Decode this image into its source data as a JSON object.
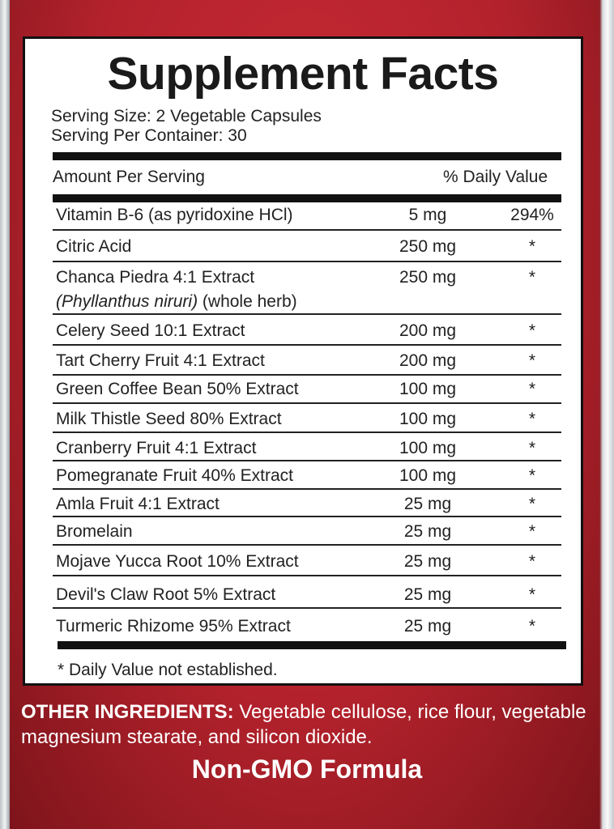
{
  "title": "Supplement Facts",
  "serving_size": "Serving Size: 2 Vegetable Capsules",
  "serving_per_container": "Serving Per Container: 30",
  "header": {
    "amount": "Amount Per Serving",
    "dv": "% Daily Value"
  },
  "rows": [
    {
      "name": "Vitamin B-6 (as pyridoxine HCl)",
      "amount": "5 mg",
      "dv": "294%"
    },
    {
      "name": "Citric Acid",
      "amount": "250 mg",
      "dv": "*"
    },
    {
      "name": "Chanca Piedra 4:1 Extract",
      "sub_italic": "(Phyllanthus niruri)",
      "sub": " (whole herb)",
      "amount": "250 mg",
      "dv": "*"
    },
    {
      "name": "Celery Seed 10:1 Extract",
      "amount": "200 mg",
      "dv": "*"
    },
    {
      "name": "Tart Cherry Fruit 4:1 Extract",
      "amount": "200 mg",
      "dv": "*"
    },
    {
      "name": "Green Coffee Bean 50% Extract",
      "amount": "100 mg",
      "dv": "*"
    },
    {
      "name": "Milk Thistle Seed 80% Extract",
      "amount": "100 mg",
      "dv": "*"
    },
    {
      "name": "Cranberry Fruit 4:1 Extract",
      "amount": "100 mg",
      "dv": "*"
    },
    {
      "name": "Pomegranate Fruit 40% Extract",
      "amount": "100 mg",
      "dv": "*"
    },
    {
      "name": "Amla Fruit 4:1 Extract",
      "amount": "25 mg",
      "dv": "*"
    },
    {
      "name": "Bromelain",
      "amount": "25 mg",
      "dv": "*"
    },
    {
      "name": "Mojave Yucca Root 10% Extract",
      "amount": "25 mg",
      "dv": "*"
    },
    {
      "name": "Devil's Claw Root 5% Extract",
      "amount": "25 mg",
      "dv": "*"
    },
    {
      "name": "Turmeric Rhizome 95% Extract",
      "amount": "25 mg",
      "dv": "*"
    }
  ],
  "footnote": "* Daily Value not established.",
  "other_ingredients": {
    "label": "OTHER INGREDIENTS:",
    "text": " Vegetable cellulose, rice flour, vegetable magnesium stearate, and silicon dioxide."
  },
  "badge": "Non-GMO Formula",
  "colors": {
    "label_red": "#b3222c",
    "text_dark": "#222222"
  }
}
